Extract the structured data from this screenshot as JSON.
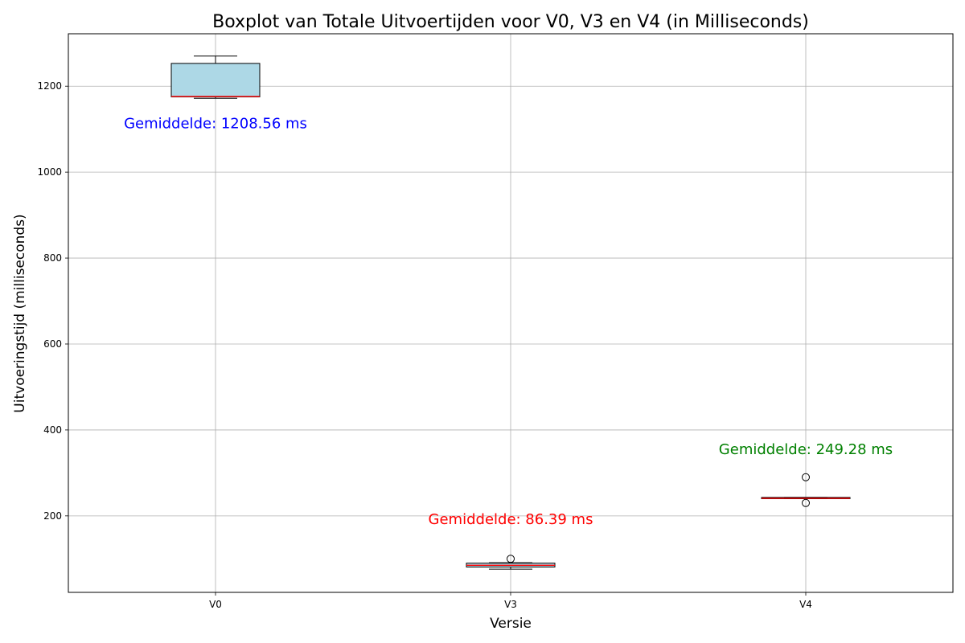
{
  "chart_data": {
    "type": "boxplot",
    "title": "Boxplot van Totale Uitvoertijden voor V0, V3 en V4 (in Milliseconds)",
    "xlabel": "Versie",
    "ylabel": "Uitvoeringstijd (milliseconds)",
    "ylim": [
      22,
      1322
    ],
    "yticks": [
      200,
      400,
      600,
      800,
      1000,
      1200
    ],
    "grid": true,
    "box_color": "#add8e6",
    "median_color": "#ff0000",
    "categories": [
      "V0",
      "V3",
      "V4"
    ],
    "boxes": [
      {
        "label": "V0",
        "whisker_low": 1172,
        "q1": 1175,
        "median": 1176,
        "q3": 1253,
        "whisker_high": 1270,
        "outliers": [],
        "mean_text": "Gemiddelde: 1208.56 ms",
        "mean_color": "#0000ff",
        "mean_text_value": 1113
      },
      {
        "label": "V3",
        "whisker_low": 76,
        "q1": 81,
        "median": 85,
        "q3": 90,
        "whisker_high": 91,
        "outliers": [
          100
        ],
        "mean_text": "Gemiddelde: 86.39 ms",
        "mean_color": "#ff0000",
        "mean_text_value": 192
      },
      {
        "label": "V4",
        "whisker_low": 240,
        "q1": 240,
        "median": 241,
        "q3": 243,
        "whisker_high": 243,
        "outliers": [
          290,
          230
        ],
        "mean_text": "Gemiddelde: 249.28 ms",
        "mean_color": "#008000",
        "mean_text_value": 355
      }
    ]
  }
}
